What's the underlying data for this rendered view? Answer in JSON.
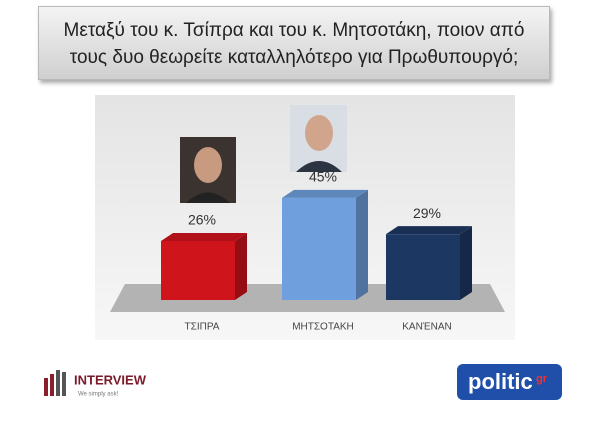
{
  "chart_data": {
    "type": "bar",
    "title": "Μεταξύ του κ. Τσίπρα και του κ. Μητσοτάκη, ποιον από τους δυο θεωρείτε καταλληλότερο για Πρωθυπουργό;",
    "categories": [
      "ΤΣΙΠΡΑ",
      "ΜΗΤΣΟΤΑΚΗ",
      "ΚΑΝΈΝΑΝ"
    ],
    "values": [
      26,
      45,
      29
    ],
    "value_labels": [
      "26%",
      "45%",
      "29%"
    ],
    "colors": [
      "#d0141c",
      "#6f9fdc",
      "#1d3763"
    ]
  },
  "logos": {
    "interview": "INTERVIEW",
    "tagline": "We simply ask!",
    "politic": "politic",
    "gr": "gr"
  }
}
